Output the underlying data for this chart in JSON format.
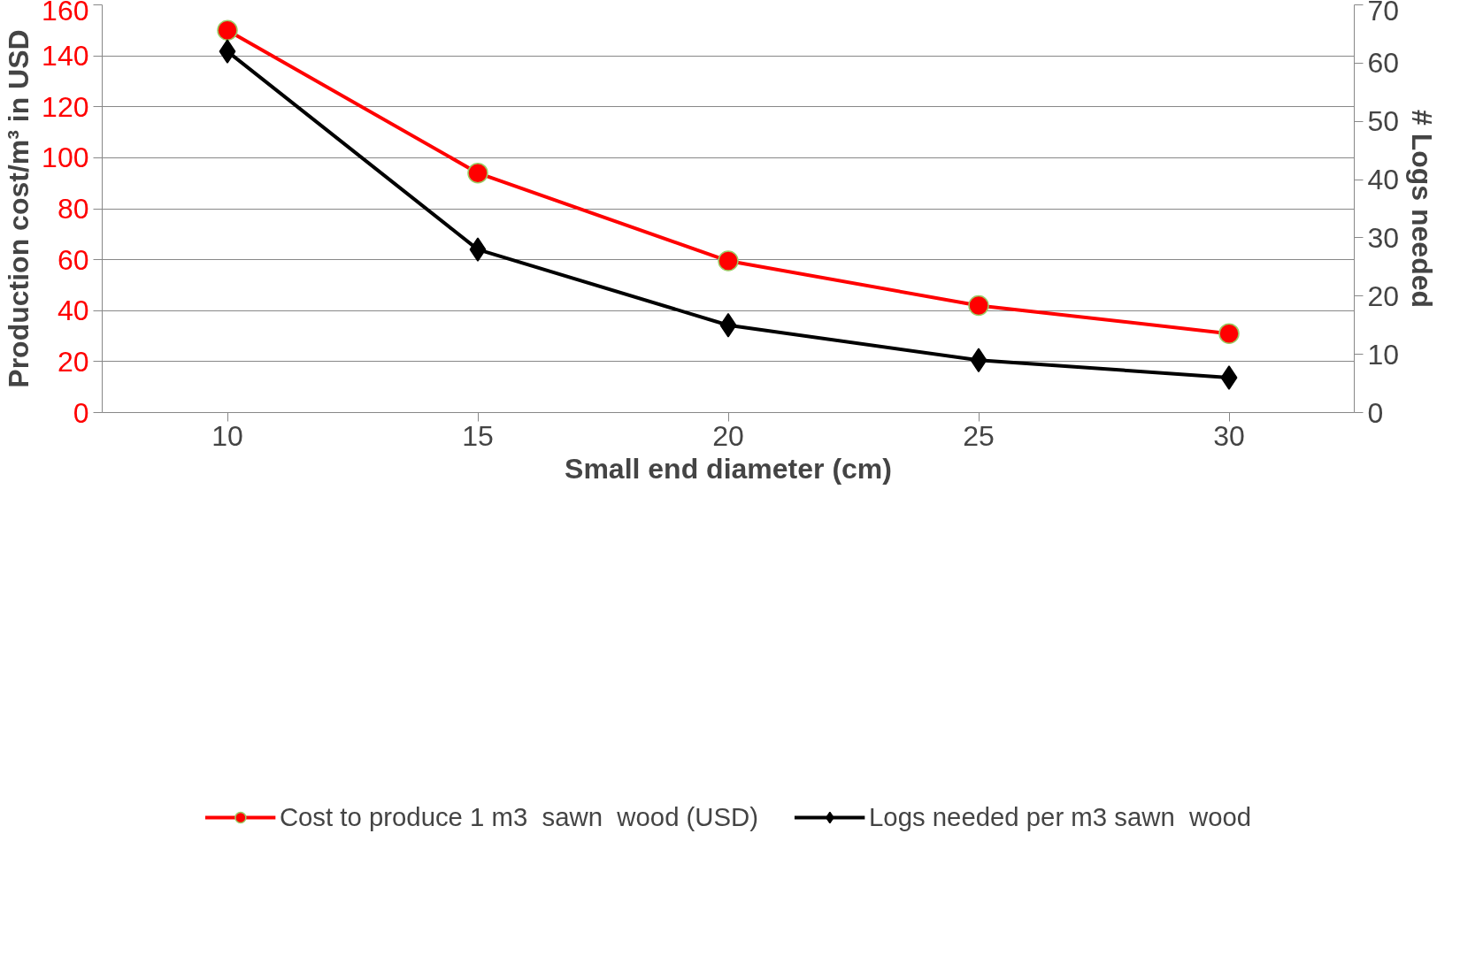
{
  "chart_data": {
    "type": "line",
    "categories": [
      "10",
      "15",
      "20",
      "25",
      "30"
    ],
    "xlabel": "Small end diameter (cm)",
    "ylabel": "Production cost/m³ in USD",
    "y2label": "# Logs needed",
    "ylim": [
      0,
      160
    ],
    "yticks": [
      0,
      20,
      40,
      60,
      80,
      100,
      120,
      140,
      160
    ],
    "y2lim": [
      0,
      70
    ],
    "y2ticks": [
      0,
      10,
      20,
      30,
      40,
      50,
      60,
      70
    ],
    "grid": "y",
    "legend": "bottom",
    "series": [
      {
        "name": "Cost to produce 1 m3  sawn  wood (USD)",
        "color": "#ff0000",
        "marker": "circle",
        "values": [
          150,
          94,
          59.5,
          42,
          31
        ]
      },
      {
        "name": "Logs needed per m3 sawn  wood",
        "color": "#000000",
        "marker": "diamond",
        "axis": "y2",
        "values": [
          62,
          28,
          15,
          9,
          6
        ]
      }
    ]
  }
}
